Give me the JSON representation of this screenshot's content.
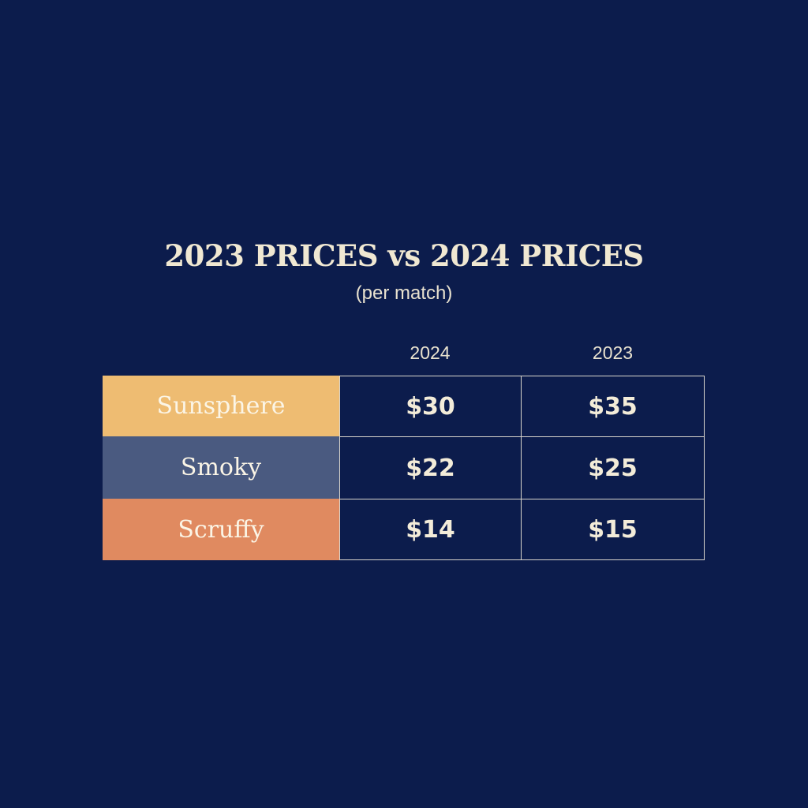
{
  "title": "2023 PRICES vs 2024 PRICES",
  "subtitle": "(per match)",
  "chart_data": {
    "type": "table",
    "columns": [
      "2024",
      "2023"
    ],
    "rows": [
      {
        "label": "Sunsphere",
        "color": "#eebc72",
        "values": [
          "$30",
          "$35"
        ]
      },
      {
        "label": "Smoky",
        "color": "#4a5a80",
        "values": [
          "$22",
          "$25"
        ]
      },
      {
        "label": "Scruffy",
        "color": "#e08a60",
        "values": [
          "$14",
          "$15"
        ]
      }
    ]
  },
  "colors": {
    "background": "#0c1c4c",
    "text": "#f3ecd9",
    "grid": "#d9d5cc"
  }
}
